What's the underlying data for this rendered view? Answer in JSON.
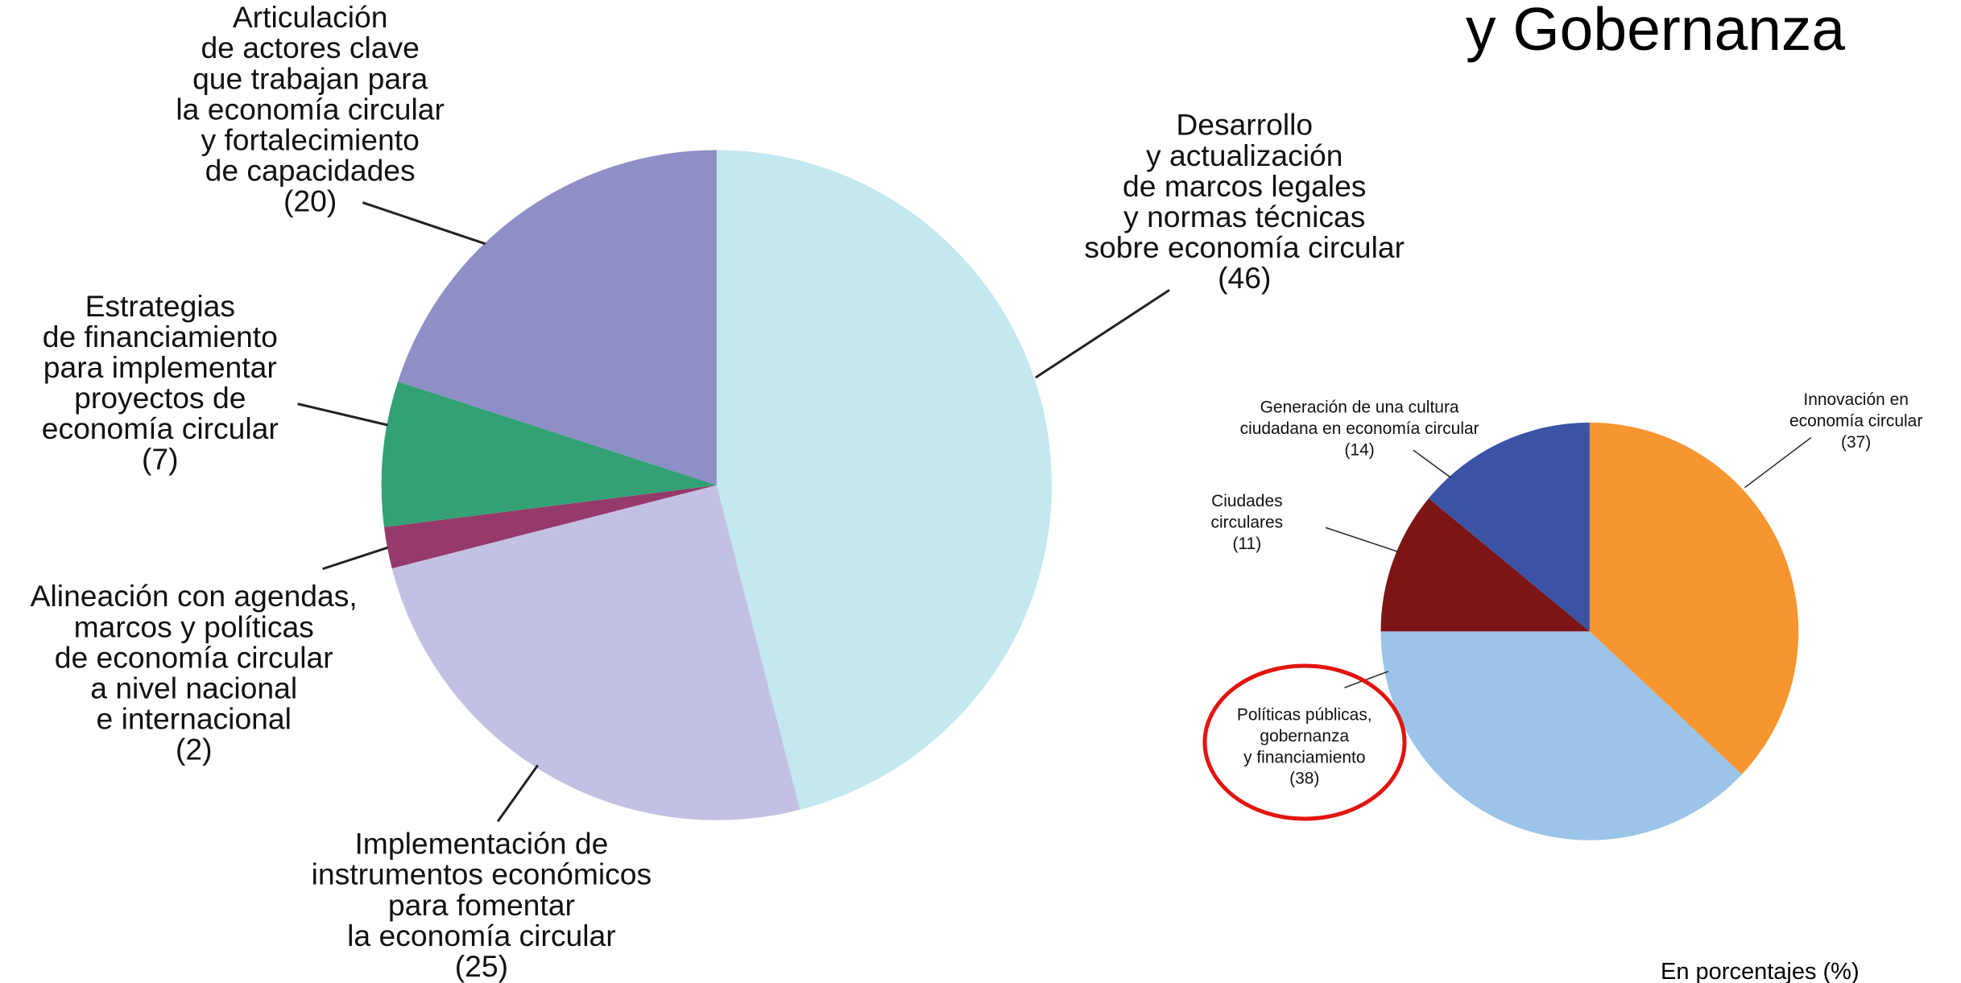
{
  "title": "y Gobernanza",
  "note": "En porcentajes (%)",
  "chart_data": [
    {
      "type": "pie",
      "categories": [
        [
          "Desarrollo",
          "y actualización",
          "de marcos legales",
          "y normas técnicas",
          "sobre economía circular"
        ],
        [
          "Implementación de",
          "instrumentos económicos",
          "para fomentar",
          "la economía circular"
        ],
        [
          "Alineación con agendas,",
          "marcos y políticas",
          "de economía circular",
          "a nivel nacional",
          "e internacional"
        ],
        [
          "Estrategias",
          "de financiamiento",
          "para implementar",
          "proyectos de",
          "economía circular"
        ],
        [
          "Articulación",
          "de actores clave",
          "que trabajan para",
          "la economía circular",
          "y fortalecimiento",
          "de capacidades"
        ]
      ],
      "values": [
        46,
        25,
        2,
        7,
        20
      ],
      "value_labels": [
        "(46)",
        "(25)",
        "(2)",
        "(7)",
        "(20)"
      ],
      "colors": [
        "#c3e8f0",
        "#c3c1e3",
        "#953a6a",
        "#33a174",
        "#8d8fc6"
      ]
    },
    {
      "type": "pie",
      "categories": [
        [
          "Innovación en",
          "economía circular"
        ],
        [
          "Políticas públicas,",
          "gobernanza",
          "y financiamiento"
        ],
        [
          "Ciudades",
          "circulares"
        ],
        [
          "Generación de una cultura",
          "ciudadana en economía circular"
        ]
      ],
      "values": [
        37,
        38,
        11,
        14
      ],
      "value_labels": [
        "(37)",
        "(38)",
        "(11)",
        "(14)"
      ],
      "colors": [
        "#f7952f",
        "#9bc4e8",
        "#7d1416",
        "#3a53a5"
      ]
    }
  ]
}
